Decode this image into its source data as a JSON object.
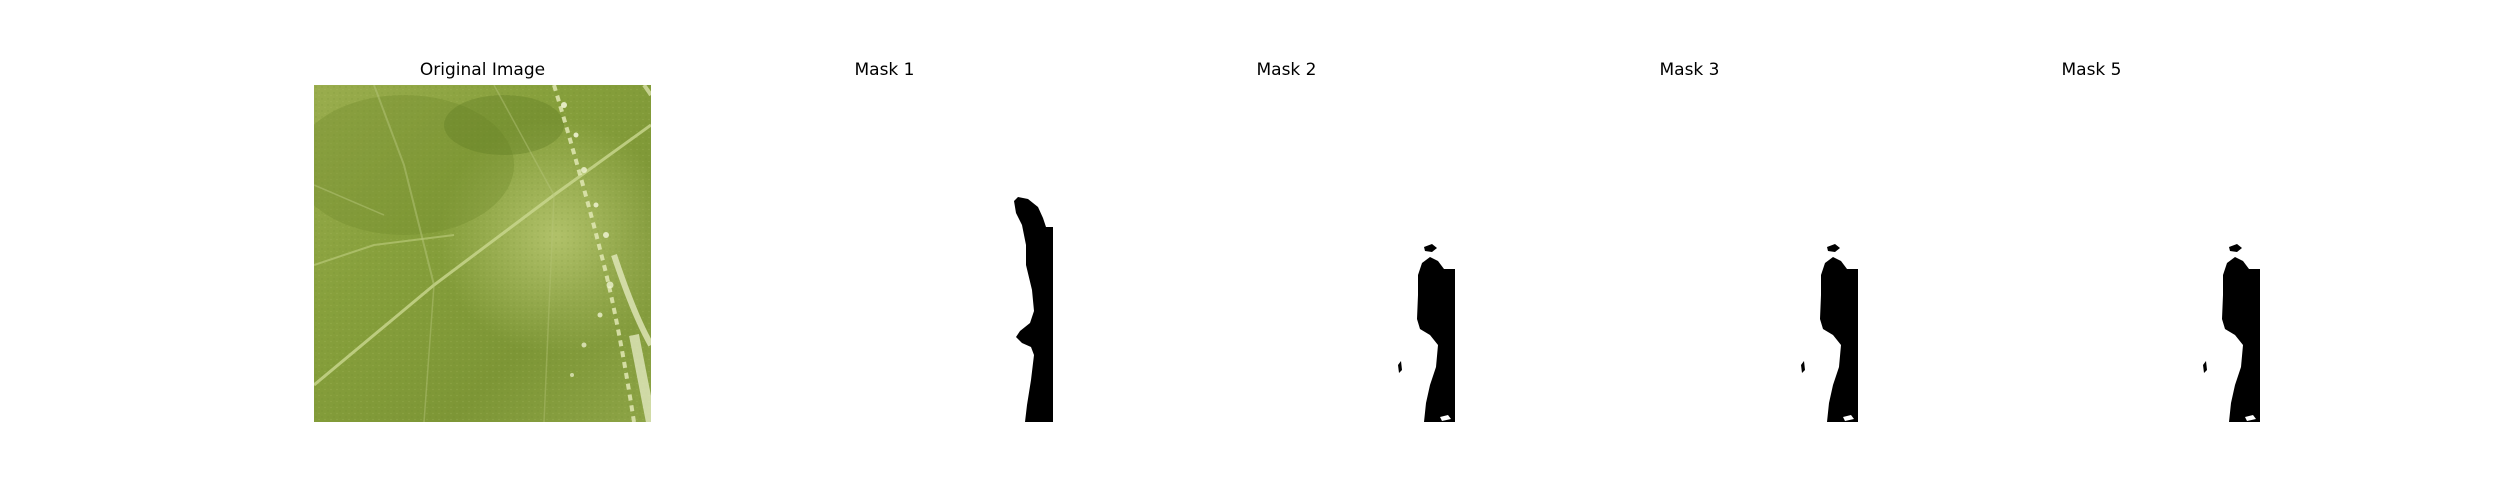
{
  "figure": {
    "panels": [
      {
        "title": "Original Image",
        "kind": "photo",
        "subject": "leaf-surface"
      },
      {
        "title": "Mask 1",
        "kind": "binary-mask"
      },
      {
        "title": "Mask 2",
        "kind": "binary-mask"
      },
      {
        "title": "Mask 3",
        "kind": "binary-mask"
      },
      {
        "title": "Mask 5",
        "kind": "binary-mask"
      }
    ],
    "colors": {
      "leaf_base": "#8fa343",
      "leaf_dark": "#6e8a2c",
      "leaf_vein": "#c9d68a",
      "leaf_highlight": "#d8e0a8",
      "mask_foreground": "#000000",
      "mask_background": "#ffffff"
    }
  }
}
